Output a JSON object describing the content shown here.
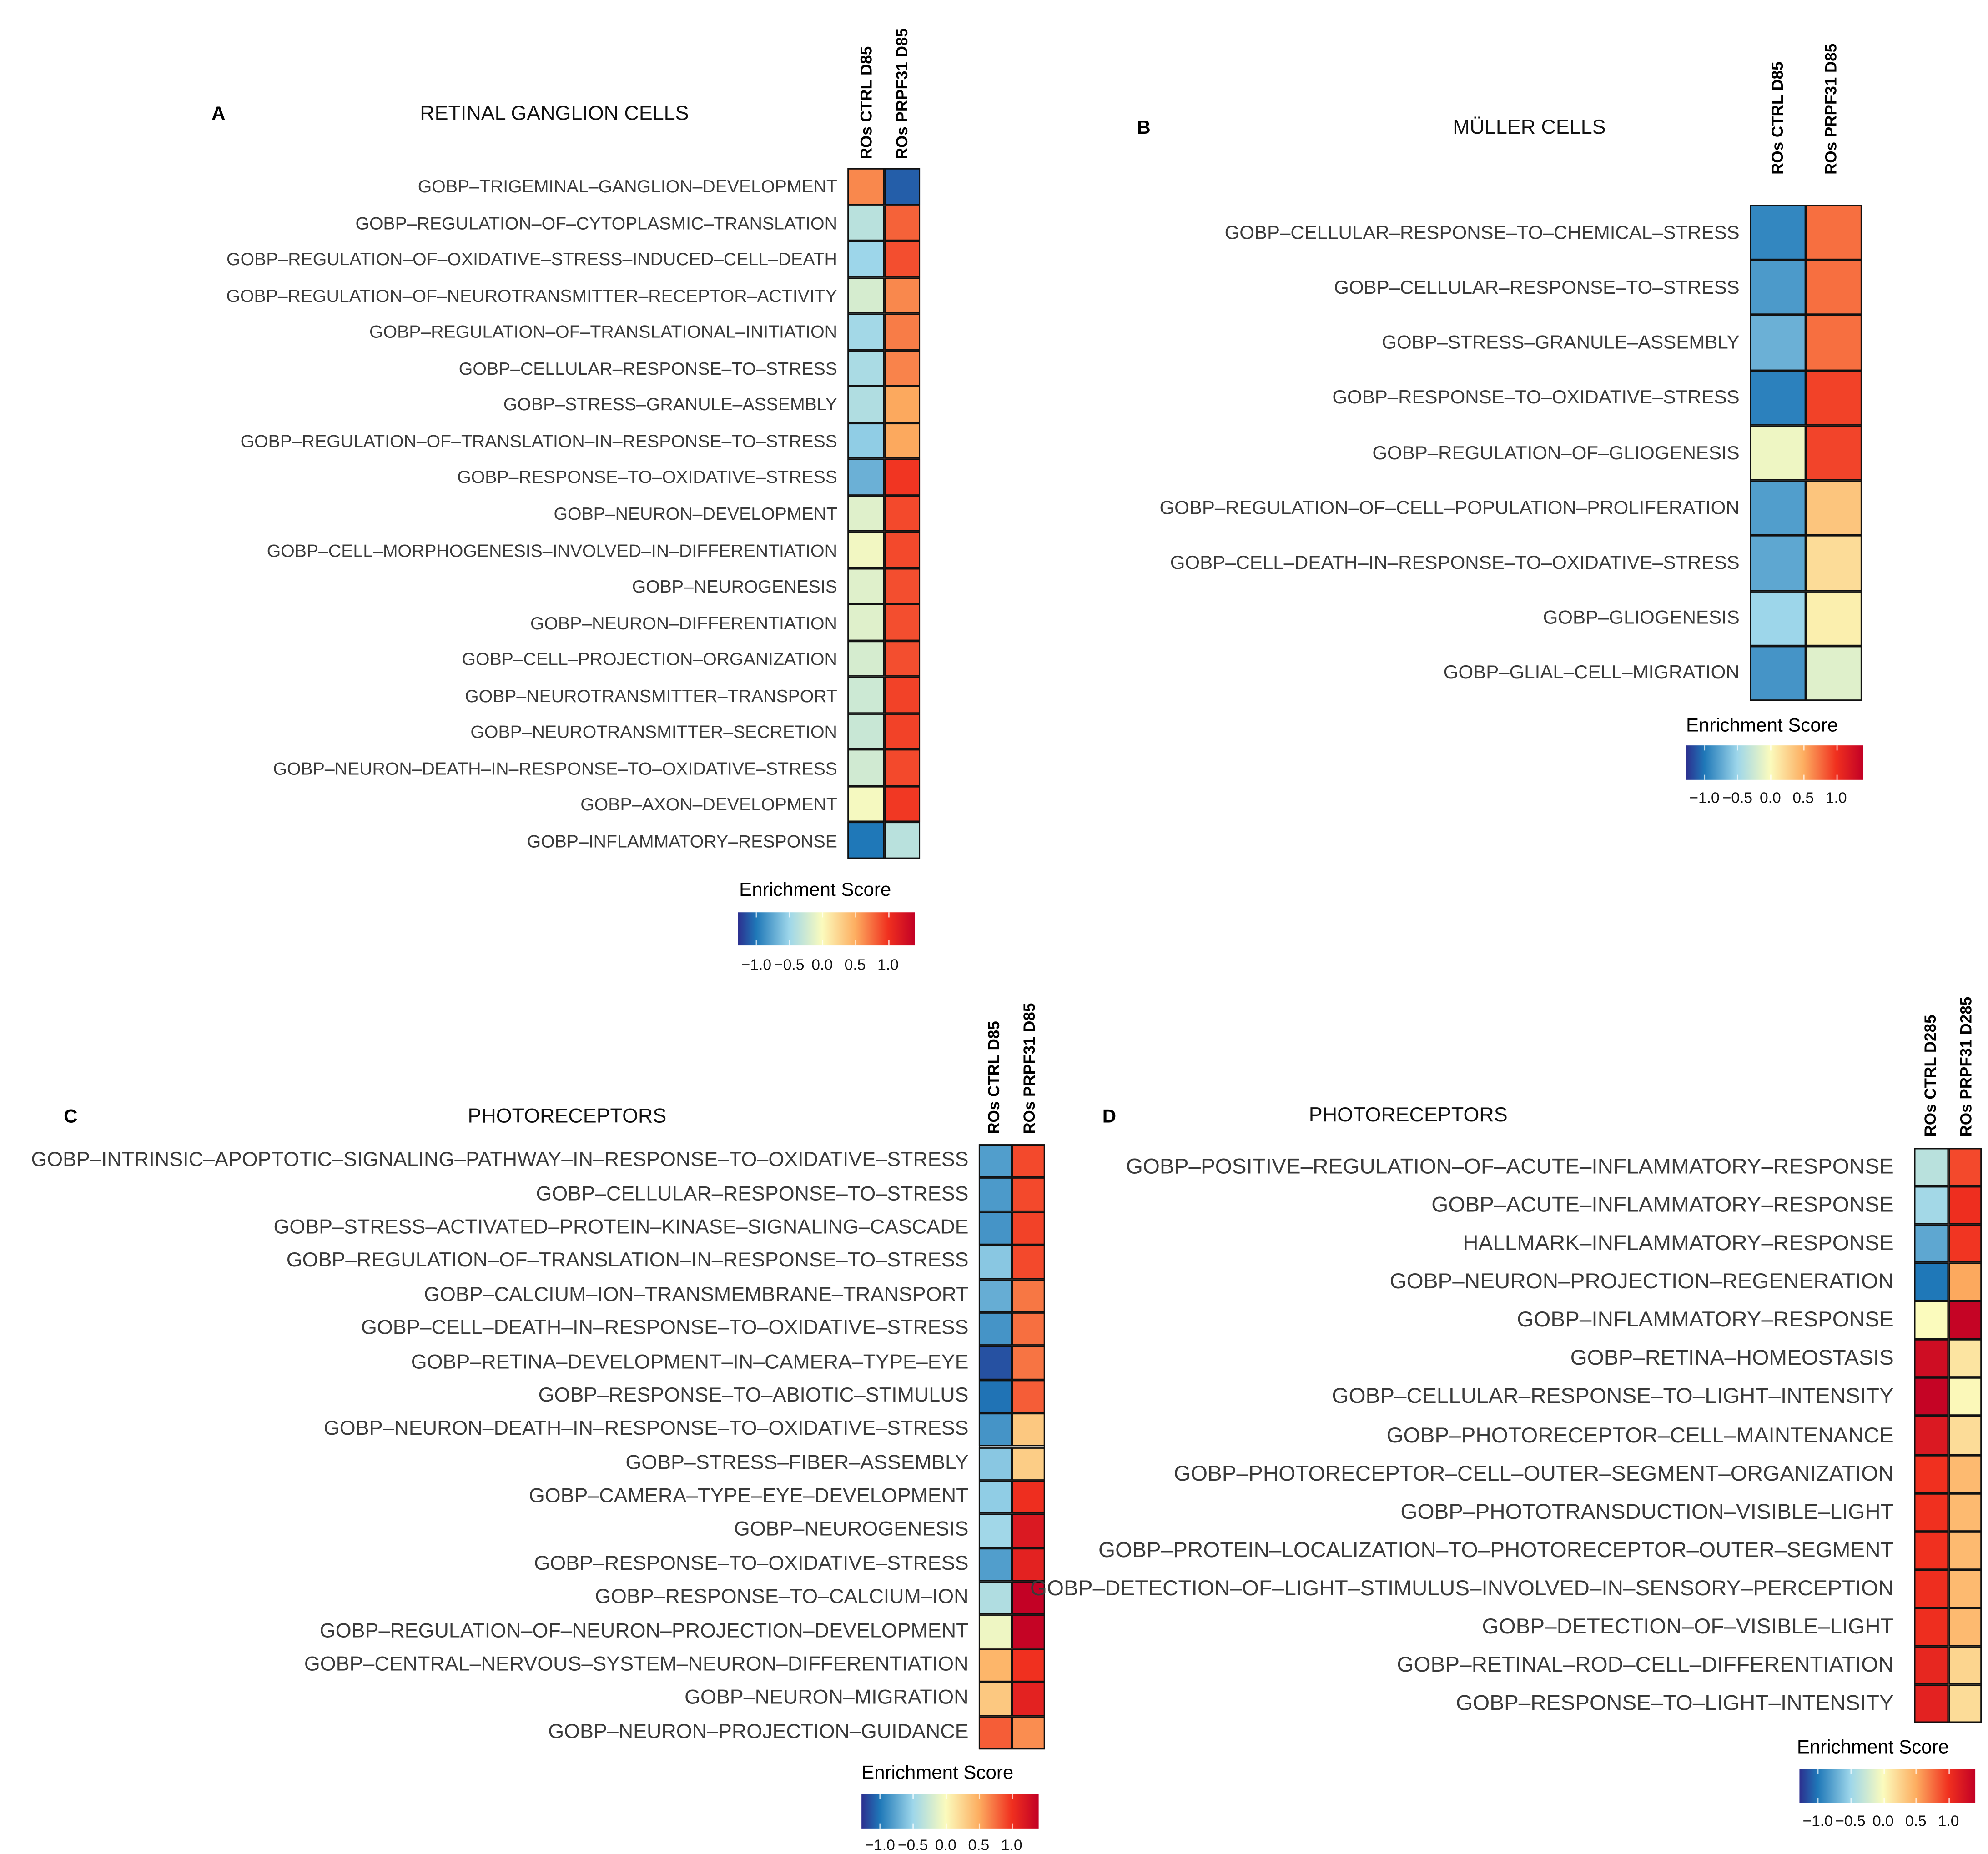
{
  "chart_data": [
    {
      "type": "heatmap",
      "panel": "A",
      "title": "RETINAL GANGLION CELLS",
      "columns": [
        "ROs CTRL D85",
        "ROs PRPF31 D85"
      ],
      "rows": [
        "GOBP–TRIGEMINAL–GANGLION–DEVELOPMENT",
        "GOBP–REGULATION–OF–CYTOPLASMIC–TRANSLATION",
        "GOBP–REGULATION–OF–OXIDATIVE–STRESS–INDUCED–CELL–DEATH",
        "GOBP–REGULATION–OF–NEUROTRANSMITTER–RECEPTOR–ACTIVITY",
        "GOBP–REGULATION–OF–TRANSLATIONAL–INITIATION",
        "GOBP–CELLULAR–RESPONSE–TO–STRESS",
        "GOBP–STRESS–GRANULE–ASSEMBLY",
        "GOBP–REGULATION–OF–TRANSLATION–IN–RESPONSE–TO–STRESS",
        "GOBP–RESPONSE–TO–OXIDATIVE–STRESS",
        "GOBP–NEURON–DEVELOPMENT",
        "GOBP–CELL–MORPHOGENESIS–INVOLVED–IN–DIFFERENTIATION",
        "GOBP–NEUROGENESIS",
        "GOBP–NEURON–DIFFERENTIATION",
        "GOBP–CELL–PROJECTION–ORGANIZATION",
        "GOBP–NEUROTRANSMITTER–TRANSPORT",
        "GOBP–NEUROTRANSMITTER–SECRETION",
        "GOBP–NEURON–DEATH–IN–RESPONSE–TO–OXIDATIVE–STRESS",
        "GOBP–AXON–DEVELOPMENT",
        "GOBP–INFLAMMATORY–RESPONSE"
      ],
      "values": [
        [
          0.65,
          -1.1
        ],
        [
          -0.35,
          0.8
        ],
        [
          -0.5,
          0.88
        ],
        [
          -0.2,
          0.65
        ],
        [
          -0.47,
          0.7
        ],
        [
          -0.43,
          0.67
        ],
        [
          -0.4,
          0.52
        ],
        [
          -0.55,
          0.52
        ],
        [
          -0.7,
          0.98
        ],
        [
          -0.15,
          0.9
        ],
        [
          -0.05,
          0.9
        ],
        [
          -0.15,
          0.88
        ],
        [
          -0.15,
          0.88
        ],
        [
          -0.2,
          0.88
        ],
        [
          -0.25,
          0.93
        ],
        [
          -0.27,
          0.93
        ],
        [
          -0.23,
          0.9
        ],
        [
          -0.03,
          0.97
        ],
        [
          -1.0,
          -0.35
        ]
      ],
      "legend_title": "Enrichment Score",
      "legend_ticks": [
        "−1.0",
        "−0.5",
        "0.0",
        "0.5",
        "1.0"
      ]
    },
    {
      "type": "heatmap",
      "panel": "B",
      "title": "MÜLLER CELLS",
      "columns": [
        "ROs CTRL D85",
        "ROs PRPF31 D85"
      ],
      "rows": [
        "GOBP–CELLULAR–RESPONSE–TO–CHEMICAL–STRESS",
        "GOBP–CELLULAR–RESPONSE–TO–STRESS",
        "GOBP–STRESS–GRANULE–ASSEMBLY",
        "GOBP–RESPONSE–TO–OXIDATIVE–STRESS",
        "GOBP–REGULATION–OF–GLIOGENESIS",
        "GOBP–REGULATION–OF–CELL–POPULATION–PROLIFERATION",
        "GOBP–CELL–DEATH–IN–RESPONSE–TO–OXIDATIVE–STRESS",
        "GOBP–GLIOGENESIS",
        "GOBP–GLIAL–CELL–MIGRATION"
      ],
      "values": [
        [
          -0.92,
          0.75
        ],
        [
          -0.82,
          0.75
        ],
        [
          -0.7,
          0.75
        ],
        [
          -0.95,
          0.93
        ],
        [
          -0.07,
          0.92
        ],
        [
          -0.8,
          0.35
        ],
        [
          -0.75,
          0.2
        ],
        [
          -0.5,
          0.08
        ],
        [
          -0.85,
          -0.15
        ]
      ],
      "legend_title": "Enrichment Score",
      "legend_ticks": [
        "−1.0",
        "−0.5",
        "0.0",
        "0.5",
        "1.0"
      ]
    },
    {
      "type": "heatmap",
      "panel": "C",
      "title": "PHOTORECEPTORS",
      "columns": [
        "ROs CTRL D85",
        "ROs PRPF31 D85"
      ],
      "rows": [
        "GOBP–INTRINSIC–APOPTOTIC–SIGNALING–PATHWAY–IN–RESPONSE–TO–OXIDATIVE–STRESS",
        "GOBP–CELLULAR–RESPONSE–TO–STRESS",
        "GOBP–STRESS–ACTIVATED–PROTEIN–KINASE–SIGNALING–CASCADE",
        "GOBP–REGULATION–OF–TRANSLATION–IN–RESPONSE–TO–STRESS",
        "GOBP–CALCIUM–ION–TRANSMEMBRANE–TRANSPORT",
        "GOBP–CELL–DEATH–IN–RESPONSE–TO–OXIDATIVE–STRESS",
        "GOBP–RETINA–DEVELOPMENT–IN–CAMERA–TYPE–EYE",
        "GOBP–RESPONSE–TO–ABIOTIC–STIMULUS",
        "GOBP–NEURON–DEATH–IN–RESPONSE–TO–OXIDATIVE–STRESS",
        "GOBP–STRESS–FIBER–ASSEMBLY",
        "GOBP–CAMERA–TYPE–EYE–DEVELOPMENT",
        "GOBP–NEUROGENESIS",
        "GOBP–RESPONSE–TO–OXIDATIVE–STRESS",
        "GOBP–RESPONSE–TO–CALCIUM–ION",
        "GOBP–REGULATION–OF–NEURON–PROJECTION–DEVELOPMENT",
        "GOBP–CENTRAL–NERVOUS–SYSTEM–NEURON–DIFFERENTIATION",
        "GOBP–NEURON–MIGRATION",
        "GOBP–NEURON–PROJECTION–GUIDANCE"
      ],
      "values": [
        [
          -0.8,
          0.9
        ],
        [
          -0.82,
          0.9
        ],
        [
          -0.85,
          0.93
        ],
        [
          -0.58,
          0.9
        ],
        [
          -0.72,
          0.72
        ],
        [
          -0.85,
          0.75
        ],
        [
          -1.15,
          0.73
        ],
        [
          -1.02,
          0.82
        ],
        [
          -0.85,
          0.33
        ],
        [
          -0.58,
          0.3
        ],
        [
          -0.55,
          1.02
        ],
        [
          -0.48,
          1.2
        ],
        [
          -0.8,
          1.12
        ],
        [
          -0.4,
          1.4
        ],
        [
          -0.07,
          1.38
        ],
        [
          0.45,
          1.0
        ],
        [
          0.33,
          1.12
        ],
        [
          0.82,
          0.63
        ]
      ],
      "legend_title": "Enrichment Score",
      "legend_ticks": [
        "−1.0",
        "−0.5",
        "0.0",
        "0.5",
        "1.0"
      ]
    },
    {
      "type": "heatmap",
      "panel": "D",
      "title": "PHOTORECEPTORS",
      "columns": [
        "ROs CTRL D285",
        "ROs PRPF31 D285"
      ],
      "rows": [
        "GOBP–POSITIVE–REGULATION–OF–ACUTE–INFLAMMATORY–RESPONSE",
        "GOBP–ACUTE–INFLAMMATORY–RESPONSE",
        "HALLMARK–INFLAMMATORY–RESPONSE",
        "GOBP–NEURON–PROJECTION–REGENERATION",
        "GOBP–INFLAMMATORY–RESPONSE",
        "GOBP–RETINA–HOMEOSTASIS",
        "GOBP–CELLULAR–RESPONSE–TO–LIGHT–INTENSITY",
        "GOBP–PHOTORECEPTOR–CELL–MAINTENANCE",
        "GOBP–PHOTORECEPTOR–CELL–OUTER–SEGMENT–ORGANIZATION",
        "GOBP–PHOTOTRANSDUCTION–VISIBLE–LIGHT",
        "GOBP–PROTEIN–LOCALIZATION–TO–PHOTORECEPTOR–OUTER–SEGMENT",
        "GOBP–DETECTION–OF–LIGHT–STIMULUS–INVOLVED–IN–SENSORY–PERCEPTION",
        "GOBP–DETECTION–OF–VISIBLE–LIGHT",
        "GOBP–RETINAL–ROD–CELL–DIFFERENTIATION",
        "GOBP–RESPONSE–TO–LIGHT–INTENSITY"
      ],
      "values": [
        [
          -0.35,
          0.9
        ],
        [
          -0.47,
          1.02
        ],
        [
          -0.75,
          0.98
        ],
        [
          -1.0,
          0.52
        ],
        [
          0.0,
          1.38
        ],
        [
          1.3,
          0.15
        ],
        [
          1.38,
          0.02
        ],
        [
          1.2,
          0.2
        ],
        [
          1.0,
          0.42
        ],
        [
          1.0,
          0.42
        ],
        [
          1.0,
          0.42
        ],
        [
          1.02,
          0.42
        ],
        [
          1.02,
          0.42
        ],
        [
          1.08,
          0.25
        ],
        [
          1.12,
          0.2
        ]
      ],
      "legend_title": "Enrichment Score",
      "legend_ticks": [
        "−1.0",
        "−0.5",
        "0.0",
        "0.5",
        "1.0"
      ]
    }
  ],
  "colorscale": {
    "range": [
      -1.28,
      1.41
    ],
    "stops": [
      [
        -1.28,
        "#2c2f8f"
      ],
      [
        -1.0,
        "#1f78b8"
      ],
      [
        -0.5,
        "#9dd6ea"
      ],
      [
        0.0,
        "#fbfbbd"
      ],
      [
        0.5,
        "#fdae61"
      ],
      [
        1.0,
        "#f0301f"
      ],
      [
        1.41,
        "#c20025"
      ]
    ]
  }
}
